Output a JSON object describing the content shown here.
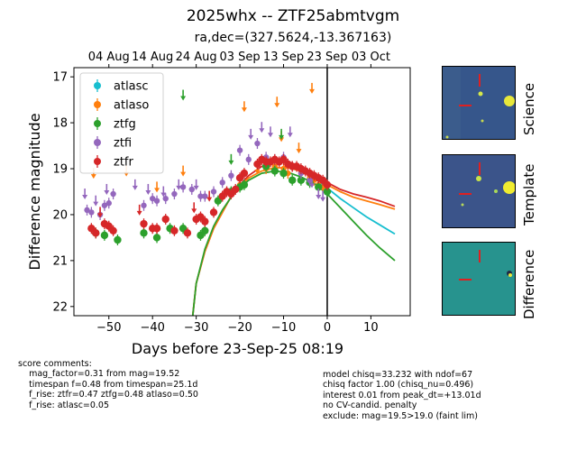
{
  "title": "2025whx -- ZTF25abmtvgm",
  "subtitle": "ra,dec=(327.5624,-13.367163)",
  "chart_data": {
    "type": "scatter",
    "xlabel": "Days before 23-Sep-25 08:19",
    "ylabel": "Difference magnitude",
    "xlim": [
      -58,
      19
    ],
    "ylim": [
      22.2,
      16.8
    ],
    "y_inverted": true,
    "x_ticks": [
      -50,
      -40,
      -30,
      -20,
      -10,
      0,
      10
    ],
    "y_ticks": [
      17,
      18,
      19,
      20,
      21,
      22
    ],
    "top_axis_ticks": [
      {
        "x": -50,
        "label": "04 Aug"
      },
      {
        "x": -40,
        "label": "14 Aug"
      },
      {
        "x": -30,
        "label": "24 Aug"
      },
      {
        "x": -20,
        "label": "03 Sep"
      },
      {
        "x": -10,
        "label": "13 Sep"
      },
      {
        "x": 0,
        "label": "23 Sep"
      },
      {
        "x": 10,
        "label": "03 Oct"
      }
    ],
    "vertical_line_x": 0,
    "legend_position": "upper-left",
    "series": [
      {
        "name": "atlasc",
        "color": "#17becf",
        "points": [
          [
            -1,
            19.3
          ],
          [
            -0.5,
            19.45
          ]
        ],
        "limits": []
      },
      {
        "name": "atlaso",
        "color": "#ff7f0e",
        "points": [
          [
            -20,
            19.35
          ],
          [
            -14,
            19.0
          ],
          [
            -12,
            18.95
          ],
          [
            -10,
            19.0
          ],
          [
            -9,
            19.1
          ],
          [
            -6,
            19.05
          ],
          [
            -4,
            19.2
          ],
          [
            -3,
            19.25
          ],
          [
            -2,
            19.35
          ],
          [
            -1,
            19.4
          ]
        ],
        "limits": [
          [
            -53.5,
            19.1
          ],
          [
            -46,
            19.05
          ],
          [
            -39,
            19.4
          ],
          [
            -33,
            19.05
          ],
          [
            -19,
            17.65
          ],
          [
            -16,
            19.0
          ],
          [
            -11.5,
            17.55
          ],
          [
            -10.5,
            18.3
          ],
          [
            -6.5,
            18.55
          ],
          [
            -3.5,
            17.25
          ]
        ]
      },
      {
        "name": "ztfg",
        "color": "#2ca02c",
        "points": [
          [
            -53,
            20.4
          ],
          [
            -51,
            20.45
          ],
          [
            -48,
            20.55
          ],
          [
            -42,
            20.4
          ],
          [
            -39,
            20.5
          ],
          [
            -36,
            20.3
          ],
          [
            -33,
            20.3
          ],
          [
            -29,
            20.45
          ],
          [
            -28,
            20.35
          ],
          [
            -25,
            19.7
          ],
          [
            -22,
            19.5
          ],
          [
            -20,
            19.4
          ],
          [
            -19,
            19.35
          ],
          [
            -14,
            18.95
          ],
          [
            -12,
            19.05
          ],
          [
            -10,
            19.1
          ],
          [
            -8,
            19.25
          ],
          [
            -6,
            19.25
          ],
          [
            -4,
            19.3
          ],
          [
            -2,
            19.4
          ],
          [
            0,
            19.5
          ]
        ],
        "limits": [
          [
            -33,
            17.4
          ],
          [
            -22,
            18.8
          ],
          [
            -10.5,
            18.25
          ]
        ]
      },
      {
        "name": "ztfi",
        "color": "#9467bd",
        "points": [
          [
            -55,
            19.9
          ],
          [
            -54,
            19.95
          ],
          [
            -52,
            20.0
          ],
          [
            -51,
            19.8
          ],
          [
            -50,
            19.75
          ],
          [
            -49,
            19.55
          ],
          [
            -42,
            19.8
          ],
          [
            -40,
            19.65
          ],
          [
            -39,
            19.7
          ],
          [
            -37,
            19.65
          ],
          [
            -35,
            19.55
          ],
          [
            -33,
            19.4
          ],
          [
            -31,
            19.45
          ],
          [
            -29,
            19.6
          ],
          [
            -28,
            19.6
          ],
          [
            -26,
            19.5
          ],
          [
            -24,
            19.3
          ],
          [
            -22,
            19.15
          ],
          [
            -20,
            18.6
          ],
          [
            -18,
            18.8
          ],
          [
            -16,
            18.45
          ],
          [
            -14,
            18.75
          ],
          [
            -12,
            18.8
          ],
          [
            -10,
            18.75
          ],
          [
            -8,
            18.95
          ],
          [
            -6,
            19.1
          ],
          [
            -4,
            19.25
          ]
        ],
        "limits": [
          [
            -55.5,
            19.55
          ],
          [
            -53,
            19.7
          ],
          [
            -50.5,
            19.45
          ],
          [
            -44,
            19.35
          ],
          [
            -41,
            19.45
          ],
          [
            -37.5,
            19.5
          ],
          [
            -34,
            19.35
          ],
          [
            -30,
            19.35
          ],
          [
            -17.5,
            18.25
          ],
          [
            -15,
            18.1
          ],
          [
            -13,
            18.2
          ],
          [
            -8.5,
            18.2
          ],
          [
            -3.5,
            19.3
          ],
          [
            -2,
            19.55
          ],
          [
            -1,
            19.6
          ]
        ]
      },
      {
        "name": "ztfr",
        "color": "#d62728",
        "points": [
          [
            -54,
            20.3
          ],
          [
            -53,
            20.4
          ],
          [
            -51,
            20.2
          ],
          [
            -50,
            20.25
          ],
          [
            -49,
            20.35
          ],
          [
            -42,
            20.2
          ],
          [
            -40,
            20.3
          ],
          [
            -39,
            20.3
          ],
          [
            -37,
            20.1
          ],
          [
            -35,
            20.35
          ],
          [
            -32,
            20.4
          ],
          [
            -30,
            20.1
          ],
          [
            -29,
            20.05
          ],
          [
            -28,
            20.15
          ],
          [
            -26,
            19.95
          ],
          [
            -24,
            19.6
          ],
          [
            -23,
            19.5
          ],
          [
            -22,
            19.55
          ],
          [
            -21,
            19.45
          ],
          [
            -20,
            19.2
          ],
          [
            -19,
            19.1
          ],
          [
            -16,
            18.9
          ],
          [
            -15,
            18.8
          ],
          [
            -14,
            18.85
          ],
          [
            -13,
            18.85
          ],
          [
            -12,
            18.8
          ],
          [
            -11,
            18.85
          ],
          [
            -10,
            18.8
          ],
          [
            -9,
            18.9
          ],
          [
            -8,
            18.95
          ],
          [
            -7,
            18.95
          ],
          [
            -6,
            19.0
          ],
          [
            -5,
            19.05
          ],
          [
            -4,
            19.1
          ],
          [
            -3,
            19.15
          ],
          [
            -2,
            19.2
          ],
          [
            -1,
            19.25
          ],
          [
            0,
            19.35
          ]
        ],
        "limits": [
          [
            -52,
            19.95
          ],
          [
            -43,
            19.9
          ],
          [
            -30.5,
            19.85
          ],
          [
            -27,
            19.6
          ]
        ]
      }
    ],
    "model_curves": [
      {
        "band": "ztfr",
        "color": "#d62728",
        "points": [
          [
            -30.8,
            22.2
          ],
          [
            -30,
            21.5
          ],
          [
            -28,
            20.8
          ],
          [
            -26,
            20.3
          ],
          [
            -24,
            19.95
          ],
          [
            -22,
            19.6
          ],
          [
            -20,
            19.35
          ],
          [
            -18,
            19.15
          ],
          [
            -15,
            18.95
          ],
          [
            -12,
            18.85
          ],
          [
            -9,
            18.85
          ],
          [
            -6,
            18.95
          ],
          [
            -3,
            19.1
          ],
          [
            0,
            19.3
          ],
          [
            3,
            19.45
          ],
          [
            6,
            19.55
          ],
          [
            9,
            19.62
          ],
          [
            12,
            19.7
          ],
          [
            15.5,
            19.82
          ]
        ]
      },
      {
        "band": "atlaso",
        "color": "#ff7f0e",
        "points": [
          [
            -30.8,
            22.2
          ],
          [
            -30,
            21.5
          ],
          [
            -28,
            20.8
          ],
          [
            -26,
            20.3
          ],
          [
            -24,
            19.95
          ],
          [
            -22,
            19.6
          ],
          [
            -20,
            19.38
          ],
          [
            -18,
            19.2
          ],
          [
            -15,
            19.05
          ],
          [
            -12,
            18.98
          ],
          [
            -9,
            18.98
          ],
          [
            -6,
            19.05
          ],
          [
            -3,
            19.18
          ],
          [
            0,
            19.35
          ],
          [
            3,
            19.5
          ],
          [
            6,
            19.62
          ],
          [
            9,
            19.7
          ],
          [
            12,
            19.78
          ],
          [
            15.5,
            19.88
          ]
        ]
      },
      {
        "band": "ztfg",
        "color": "#2ca02c",
        "points": [
          [
            -30.8,
            22.2
          ],
          [
            -30,
            21.5
          ],
          [
            -28,
            20.75
          ],
          [
            -26,
            20.25
          ],
          [
            -24,
            19.9
          ],
          [
            -22,
            19.62
          ],
          [
            -20,
            19.42
          ],
          [
            -18,
            19.25
          ],
          [
            -15,
            19.1
          ],
          [
            -12,
            19.05
          ],
          [
            -9,
            19.08
          ],
          [
            -6,
            19.18
          ],
          [
            -3,
            19.32
          ],
          [
            0,
            19.55
          ],
          [
            3,
            19.85
          ],
          [
            6,
            20.15
          ],
          [
            9,
            20.45
          ],
          [
            12,
            20.72
          ],
          [
            15.5,
            21.0
          ]
        ]
      },
      {
        "band": "atlasc",
        "color": "#17becf",
        "points": [
          [
            -3,
            19.2
          ],
          [
            0,
            19.42
          ],
          [
            3,
            19.65
          ],
          [
            6,
            19.85
          ],
          [
            9,
            20.05
          ],
          [
            12,
            20.22
          ],
          [
            15.5,
            20.42
          ]
        ]
      }
    ]
  },
  "stamps": [
    {
      "label": "Science",
      "bg": "#3b5c8c"
    },
    {
      "label": "Template",
      "bg": "#3b548a"
    },
    {
      "label": "Difference",
      "bg": "#2a9d8f"
    }
  ],
  "comments_left": "score comments:\n    mag_factor=0.31 from mag=19.52\n    timespan f=0.48 from timespan=25.1d\n    f_rise: ztfr=0.47 ztfg=0.48 atlaso=0.50\n    f_rise: atlasc=0.05",
  "comments_right": "model chisq=33.232 with ndof=67\nchisq factor 1.00 (chisq_nu=0.496)\ninterest 0.01 from peak_dt=+13.01d\nno CV-candid. penalty\nexclude: mag=19.5>19.0 (faint lim)"
}
